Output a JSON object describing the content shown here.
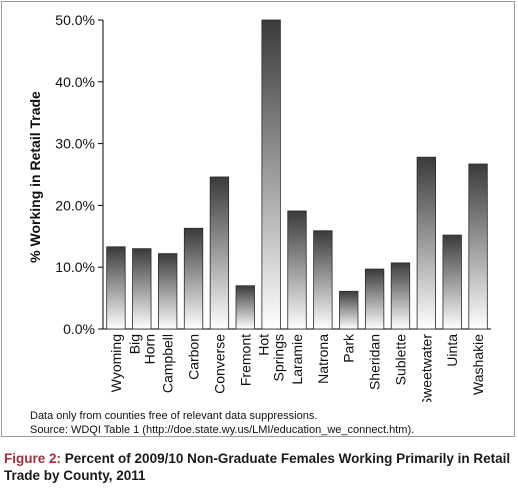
{
  "chart_data": {
    "type": "bar",
    "ylabel": "% Working in Retail Trade",
    "xlabel": "",
    "ylim": [
      0,
      50
    ],
    "yticks": [
      0,
      10,
      20,
      30,
      40,
      50
    ],
    "ytick_labels": [
      "0.0%",
      "10.0%",
      "20.0%",
      "30.0%",
      "40.0%",
      "50.0%"
    ],
    "categories": [
      "Wyoming",
      "Big Horn",
      "Campbell",
      "Carbon",
      "Converse",
      "Fremont",
      "Hot Springs",
      "Laramie",
      "Natrona",
      "Park",
      "Sheridan",
      "Sublette",
      "Sweetwater",
      "Uinta",
      "Washakie"
    ],
    "values": [
      13.3,
      13.0,
      12.2,
      16.3,
      24.6,
      7.0,
      50.0,
      19.1,
      15.9,
      6.1,
      9.7,
      10.7,
      27.8,
      15.2,
      26.7
    ],
    "grid": false,
    "bar_gradient": [
      "#3a3a3a",
      "#ffffff"
    ]
  },
  "notes": [
    "Data only from counties free of relevant data suppressions.",
    "Source: WDQI Table 1 (http://doe.state.wy.us/LMI/education_we_connect.htm)."
  ],
  "caption": {
    "figure_label": "Figure 2:",
    "text": "Percent of 2009/10 Non-Graduate Females Working Primarily in Retail Trade by County, 2011"
  },
  "colors": {
    "caption_label": "#9c2f3c"
  }
}
